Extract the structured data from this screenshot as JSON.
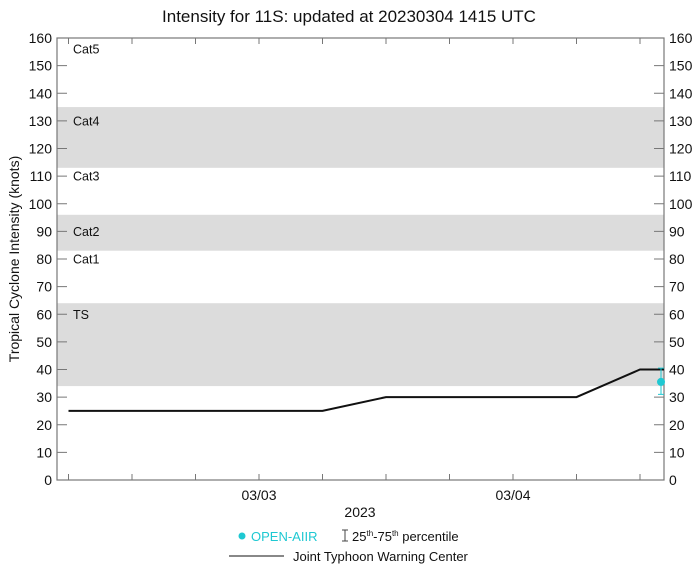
{
  "chart_data": {
    "type": "line",
    "title": "Intensity for 11S: updated at 20230304 1415 UTC",
    "xlabel": "2023",
    "ylabel": "Tropical Cyclone Intensity (knots)",
    "ylim": [
      0,
      160
    ],
    "yticks": [
      0,
      10,
      20,
      30,
      40,
      50,
      60,
      70,
      80,
      90,
      100,
      110,
      120,
      130,
      140,
      150,
      160
    ],
    "x_tick_labels": [
      {
        "label": "03/03",
        "time": "2023-03-03 00Z"
      },
      {
        "label": "03/04",
        "time": "2023-03-04 00Z"
      }
    ],
    "x_minor_tick_interval_hours": 6,
    "xlim": [
      "2023-03-02 04Z",
      "2023-03-04 15Z"
    ],
    "grid": false,
    "legend_position": "bottom-center",
    "category_bands": [
      {
        "label": "TS",
        "min": 34,
        "max": 64,
        "shaded": true,
        "label_y": 60
      },
      {
        "label": "Cat1",
        "min": 64,
        "max": 83,
        "shaded": false,
        "label_y": 80
      },
      {
        "label": "Cat2",
        "min": 83,
        "max": 96,
        "shaded": true,
        "label_y": 90
      },
      {
        "label": "Cat3",
        "min": 96,
        "max": 113,
        "shaded": false,
        "label_y": 110
      },
      {
        "label": "Cat4",
        "min": 113,
        "max": 135,
        "shaded": true,
        "label_y": 130
      },
      {
        "label": "Cat5",
        "min": 135,
        "max": 160,
        "shaded": false,
        "label_y": 156
      }
    ],
    "series": [
      {
        "name": "Joint Typhoon Warning Center",
        "style": "line",
        "color": "#111111",
        "x": [
          "2023-03-02 06Z",
          "2023-03-03 06Z",
          "2023-03-03 12Z",
          "2023-03-04 06Z",
          "2023-03-04 12Z",
          "2023-03-04 15Z"
        ],
        "values": [
          25,
          25,
          30,
          30,
          40,
          40
        ]
      },
      {
        "name": "OPEN-AIIR",
        "style": "scatter",
        "color": "#1EC8D2",
        "x": [
          "2023-03-04 14Z"
        ],
        "values": [
          35.5
        ],
        "p25": [
          31
        ],
        "p75": [
          40.5
        ]
      }
    ]
  },
  "legend": {
    "openaiir": "OPEN-AIIR",
    "percentile_prefix": "25",
    "percentile_sup1": "th",
    "percentile_mid": "-75",
    "percentile_sup2": "th",
    "percentile_suffix": " percentile",
    "jtwc": "Joint Typhoon Warning Center"
  },
  "colors": {
    "band": "#DCDCDC",
    "axis": "#777777",
    "line": "#111111",
    "openaiir": "#1EC8D2"
  }
}
